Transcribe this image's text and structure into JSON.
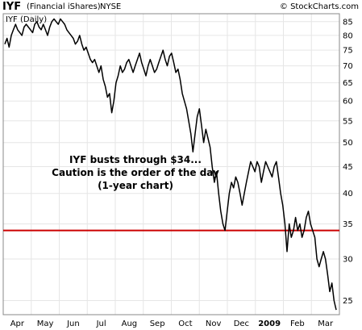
{
  "header": {
    "ticker": "IYF",
    "company": "(Financial iShares)",
    "exchange": "NYSE",
    "copyright": "© StockCharts.com"
  },
  "plot_label": "IYF (Daily)",
  "annotation": {
    "lines": [
      "IYF busts through $34...",
      "Caution is the order of the day",
      "(1-year chart)"
    ]
  },
  "colors": {
    "price_line": "#000000",
    "support_line": "#cc0000",
    "grid": "#e6e6e6",
    "frame": "#888888"
  },
  "chart_data": {
    "type": "line",
    "title": "IYF (Daily)",
    "y_scale": "log",
    "ylim": [
      23.5,
      88
    ],
    "y_ticks": [
      25,
      30,
      35,
      40,
      45,
      50,
      55,
      60,
      65,
      70,
      75,
      80,
      85
    ],
    "x_ticks": [
      "Apr",
      "May",
      "Jun",
      "Jul",
      "Aug",
      "Sep",
      "Oct",
      "Nov",
      "Dec",
      "2009",
      "Feb",
      "Mar"
    ],
    "grid": true,
    "reference_line": {
      "value": 34,
      "label": ""
    },
    "series": [
      {
        "values": [
          77,
          79,
          76,
          80,
          82,
          84,
          82,
          81,
          80,
          83,
          84,
          83,
          82,
          81,
          84,
          85,
          83,
          82,
          84,
          82,
          80,
          83,
          85,
          86,
          85,
          84,
          86,
          85,
          84,
          82,
          81,
          80,
          79,
          77,
          78,
          80,
          77,
          75,
          76,
          74,
          72,
          71,
          72,
          70,
          68,
          70,
          66,
          64,
          61,
          62,
          57,
          60,
          65,
          67,
          70,
          68,
          69,
          71,
          72,
          70,
          68,
          70,
          72,
          74,
          71,
          69,
          67,
          70,
          72,
          70,
          68,
          69,
          71,
          73,
          75,
          72,
          70,
          73,
          74,
          71,
          68,
          69,
          66,
          62,
          60,
          58,
          55,
          52,
          48,
          52,
          56,
          58,
          54,
          50,
          53,
          51,
          49,
          45,
          42,
          44,
          40,
          37,
          35,
          34,
          37,
          40,
          42,
          41,
          43,
          42,
          40,
          38,
          40,
          42,
          44,
          46,
          45,
          44,
          46,
          45,
          42,
          44,
          46,
          45,
          44,
          43,
          45,
          46,
          43,
          40,
          38,
          35,
          31,
          35,
          33,
          34,
          36,
          34,
          35,
          33,
          34,
          36,
          37,
          35,
          34,
          33,
          30,
          29,
          30,
          31,
          30,
          28,
          26,
          27,
          25,
          24
        ]
      }
    ]
  }
}
